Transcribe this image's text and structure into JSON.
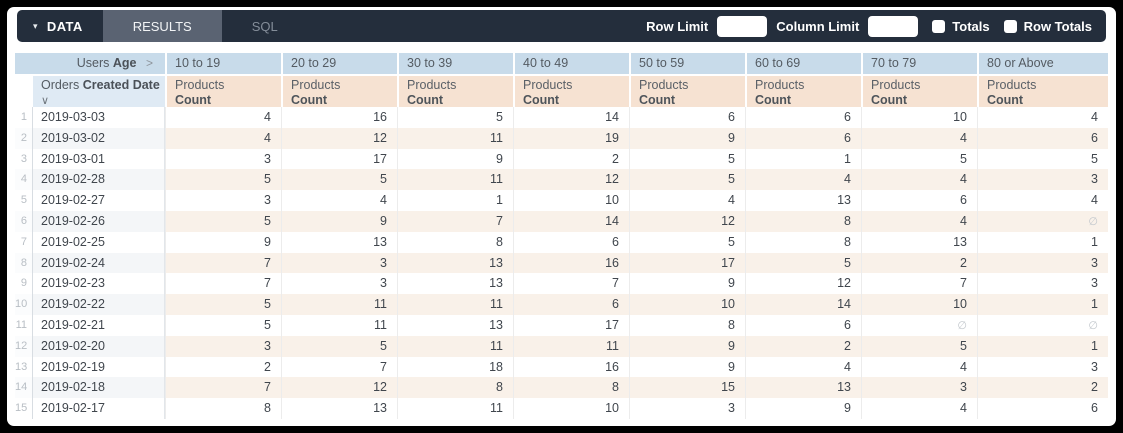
{
  "toolbar": {
    "data_tab": "DATA",
    "results_tab": "RESULTS",
    "sql_tab": "SQL",
    "row_limit_label": "Row Limit",
    "row_limit_value": "",
    "column_limit_label": "Column Limit",
    "column_limit_value": "",
    "totals_label": "Totals",
    "totals_checked": false,
    "row_totals_label": "Row Totals",
    "row_totals_checked": false
  },
  "icons": {
    "caret_down": "▾",
    "chevron_right": ">",
    "chevron_down": "∨"
  },
  "pivot": {
    "corner": {
      "prefix": "Users",
      "field": "Age"
    },
    "columns": [
      "10 to 19",
      "20 to 29",
      "30 to 39",
      "40 to 49",
      "50 to 59",
      "60 to 69",
      "70 to 79",
      "80 or Above"
    ],
    "row_header": {
      "prefix": "Orders",
      "field": "Created Date"
    },
    "measure": {
      "view": "Products",
      "field": "Count"
    },
    "null_symbol": "∅",
    "rows": [
      {
        "num": 1,
        "date": "2019-03-03",
        "values": [
          4,
          16,
          5,
          14,
          6,
          6,
          10,
          4
        ]
      },
      {
        "num": 2,
        "date": "2019-03-02",
        "values": [
          4,
          12,
          11,
          19,
          9,
          6,
          4,
          6
        ]
      },
      {
        "num": 3,
        "date": "2019-03-01",
        "values": [
          3,
          17,
          9,
          2,
          5,
          1,
          5,
          5
        ]
      },
      {
        "num": 4,
        "date": "2019-02-28",
        "values": [
          5,
          5,
          11,
          12,
          5,
          4,
          4,
          3
        ]
      },
      {
        "num": 5,
        "date": "2019-02-27",
        "values": [
          3,
          4,
          1,
          10,
          4,
          13,
          6,
          4
        ]
      },
      {
        "num": 6,
        "date": "2019-02-26",
        "values": [
          5,
          9,
          7,
          14,
          12,
          8,
          4,
          null
        ]
      },
      {
        "num": 7,
        "date": "2019-02-25",
        "values": [
          9,
          13,
          8,
          6,
          5,
          8,
          13,
          1
        ]
      },
      {
        "num": 8,
        "date": "2019-02-24",
        "values": [
          7,
          3,
          13,
          16,
          17,
          5,
          2,
          3
        ]
      },
      {
        "num": 9,
        "date": "2019-02-23",
        "values": [
          7,
          3,
          13,
          7,
          9,
          12,
          7,
          3
        ]
      },
      {
        "num": 10,
        "date": "2019-02-22",
        "values": [
          5,
          11,
          11,
          6,
          10,
          14,
          10,
          1
        ]
      },
      {
        "num": 11,
        "date": "2019-02-21",
        "values": [
          5,
          11,
          13,
          17,
          8,
          6,
          null,
          null
        ]
      },
      {
        "num": 12,
        "date": "2019-02-20",
        "values": [
          3,
          5,
          11,
          11,
          9,
          2,
          5,
          1
        ]
      },
      {
        "num": 13,
        "date": "2019-02-19",
        "values": [
          2,
          7,
          18,
          16,
          9,
          4,
          4,
          3
        ]
      },
      {
        "num": 14,
        "date": "2019-02-18",
        "values": [
          7,
          12,
          8,
          8,
          15,
          13,
          3,
          2
        ]
      },
      {
        "num": 15,
        "date": "2019-02-17",
        "values": [
          8,
          13,
          11,
          10,
          3,
          9,
          4,
          6
        ]
      }
    ]
  },
  "colors": {
    "toolbar_bg": "#242e3c",
    "active_tab_bg": "#5a6372",
    "pivot_header_blue": "#c8dbea",
    "dimension_header_blue": "#dfeaf4",
    "measure_header_peach": "#f6e2d2",
    "alt_row_peach": "#f9f1e9",
    "alt_row_gray": "#f4f6f8"
  }
}
